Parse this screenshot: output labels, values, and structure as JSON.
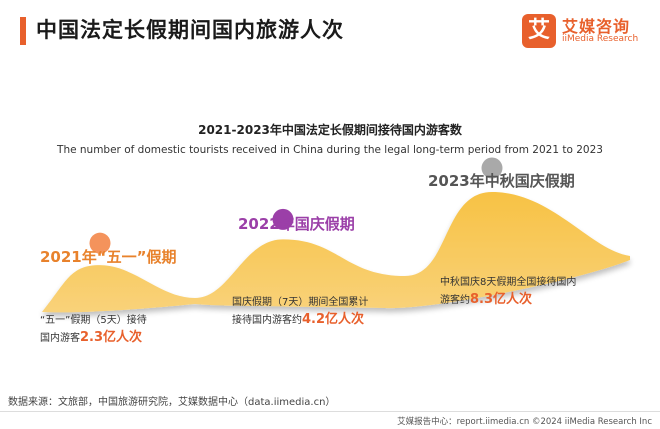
{
  "header": {
    "title": "中国法定长假期间国内旅游人次"
  },
  "logo": {
    "mark": "艾",
    "cn": "艾媒咨询",
    "en": "iiMedia Research"
  },
  "chart_data": {
    "type": "area",
    "title": "2021-2023年中国法定长假期间接待国内游客数",
    "subtitle": "The number of domestic tourists received in China during the legal long-term period from 2021 to 2023",
    "unit": "亿人次",
    "points": [
      {
        "label": "2021年“五一”假期",
        "value": 2.3,
        "color": "#f4935c",
        "desc_line1": "“五一”假期（5天）接待",
        "desc_prefix": "国内游客",
        "desc_value": "2.3亿人次"
      },
      {
        "label": "2022年国庆假期",
        "value": 4.2,
        "color": "#9b3fa8",
        "desc_line1": "国庆假期（7天）期间全国累计",
        "desc_prefix": "接待国内游客约",
        "desc_value": "4.2亿人次"
      },
      {
        "label": "2023年中秋国庆假期",
        "value": 8.3,
        "color": "#a9a9a9",
        "desc_line1": "中秋国庆8天假期全国接待国内",
        "desc_prefix": "游客约",
        "desc_value": "8.3亿人次"
      }
    ],
    "fill_color": "#f7c244"
  },
  "footer": {
    "source": "数据来源：文旅部，中国旅游研究院，艾媒数据中心（data.iimedia.cn）",
    "right": "艾媒报告中心：report.iimedia.cn  ©2024  iiMedia Research  Inc"
  }
}
